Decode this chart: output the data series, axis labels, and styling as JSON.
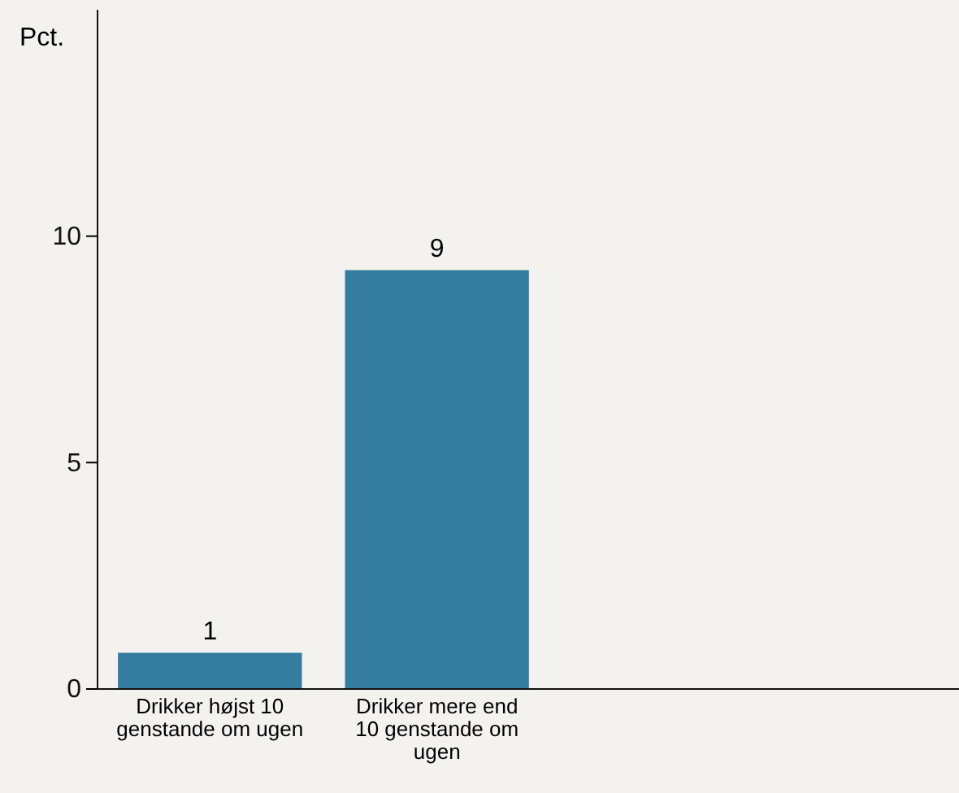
{
  "chart_data": {
    "type": "bar",
    "ylabel": "Pct.",
    "categories": [
      "Drikker højst 10 genstande om ugen",
      "Drikker mere end 10 genstande om ugen"
    ],
    "values": [
      0.8,
      9.25
    ],
    "value_labels": [
      "1",
      "9"
    ],
    "color": "#347da0",
    "ylim": [
      0,
      15
    ],
    "yticks": [
      0,
      5,
      10
    ],
    "grid": false
  }
}
